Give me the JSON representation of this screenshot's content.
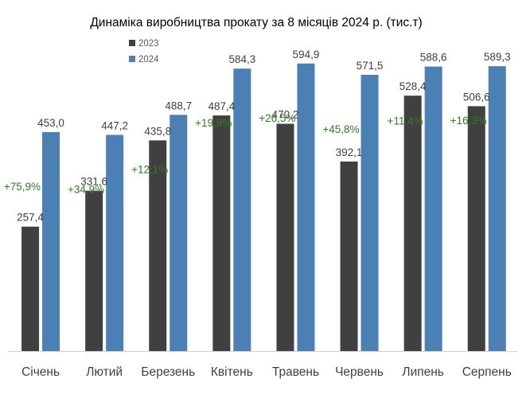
{
  "chart_data": {
    "type": "bar",
    "title": "Динаміка виробництва прокату за 8 місяців 2024 р. (тис.т)",
    "categories": [
      "Січень",
      "Лютий",
      "Березень",
      "Квітень",
      "Травень",
      "Червень",
      "Липень",
      "Серпень"
    ],
    "series": [
      {
        "name": "2023",
        "color": "#404040",
        "values": [
          257.4,
          331.6,
          435.8,
          487.4,
          470.2,
          392.1,
          528.4,
          506.6
        ],
        "labels": [
          "257,4",
          "331,6",
          "435,8",
          "487,4",
          "470,2",
          "392,1",
          "528,4",
          "506,6"
        ]
      },
      {
        "name": "2024",
        "color": "#4a80b4",
        "values": [
          453.0,
          447.2,
          488.7,
          584.3,
          594.9,
          571.5,
          588.6,
          589.3
        ],
        "labels": [
          "453,0",
          "447,2",
          "488,7",
          "584,3",
          "594,9",
          "571,5",
          "588,6",
          "589,3"
        ]
      }
    ],
    "growth_labels": [
      "+75,9%",
      "+34,9%",
      "+12,1%",
      "+19,9%",
      "+26,5%",
      "+45,8%",
      "+11,4%",
      "+16,3%"
    ],
    "growth_color": "#2e7d1f",
    "ylim": [
      0,
      620
    ],
    "grid": false,
    "legend_position": "top-left"
  }
}
